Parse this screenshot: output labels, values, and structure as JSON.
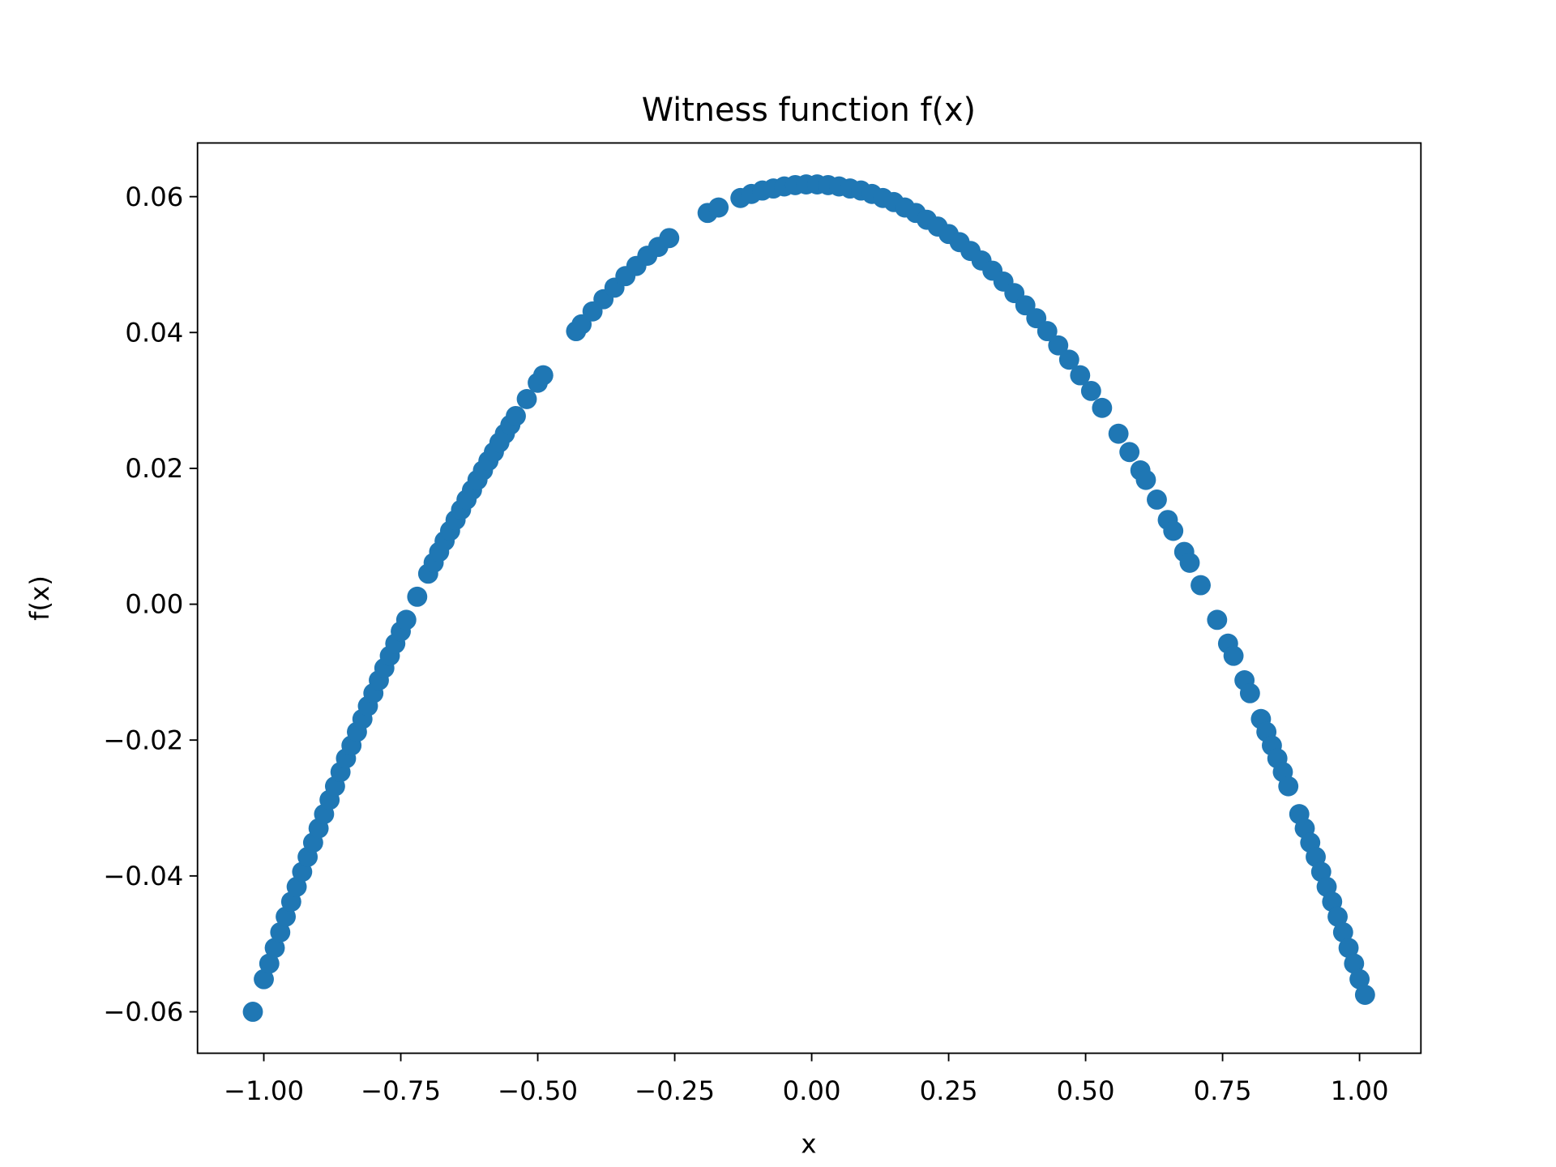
{
  "chart_data": {
    "type": "scatter",
    "title": "Witness function f(x)",
    "x_label": "x",
    "y_label": "f(x)",
    "series": [
      {
        "color": "#1f77b4",
        "x": [
          -1.02,
          -1.0,
          -0.99,
          -0.98,
          -0.97,
          -0.96,
          -0.95,
          -0.94,
          -0.93,
          -0.92,
          -0.91,
          -0.9,
          -0.89,
          -0.88,
          -0.87,
          -0.86,
          -0.85,
          -0.84,
          -0.83,
          -0.82,
          -0.81,
          -0.8,
          -0.79,
          -0.78,
          -0.77,
          -0.76,
          -0.75,
          -0.74,
          -0.72,
          -0.7,
          -0.69,
          -0.68,
          -0.67,
          -0.66,
          -0.65,
          -0.64,
          -0.63,
          -0.62,
          -0.61,
          -0.6,
          -0.59,
          -0.58,
          -0.57,
          -0.56,
          -0.55,
          -0.54,
          -0.52,
          -0.5,
          -0.49,
          -0.43,
          -0.42,
          -0.4,
          -0.38,
          -0.36,
          -0.34,
          -0.32,
          -0.3,
          -0.28,
          -0.26,
          -0.19,
          -0.17,
          -0.13,
          -0.11,
          -0.09,
          -0.07,
          -0.05,
          -0.03,
          -0.01,
          0.01,
          0.03,
          0.05,
          0.07,
          0.09,
          0.11,
          0.13,
          0.15,
          0.17,
          0.19,
          0.21,
          0.23,
          0.25,
          0.27,
          0.29,
          0.31,
          0.33,
          0.35,
          0.37,
          0.39,
          0.41,
          0.43,
          0.45,
          0.47,
          0.49,
          0.51,
          0.53,
          0.56,
          0.58,
          0.6,
          0.61,
          0.63,
          0.65,
          0.66,
          0.68,
          0.69,
          0.71,
          0.74,
          0.76,
          0.77,
          0.79,
          0.8,
          0.82,
          0.83,
          0.84,
          0.85,
          0.86,
          0.87,
          0.89,
          0.9,
          0.91,
          0.92,
          0.93,
          0.94,
          0.95,
          0.96,
          0.97,
          0.98,
          0.99,
          1.0,
          1.01
        ],
        "y": [
          -0.06,
          -0.0552,
          -0.0529,
          -0.0506,
          -0.0483,
          -0.046,
          -0.0438,
          -0.0416,
          -0.0394,
          -0.0372,
          -0.0351,
          -0.033,
          -0.0309,
          -0.0288,
          -0.0268,
          -0.0247,
          -0.0227,
          -0.0208,
          -0.0188,
          -0.0169,
          -0.015,
          -0.0131,
          -0.0112,
          -0.0094,
          -0.0076,
          -0.0058,
          -0.004,
          -0.0023,
          0.0011,
          0.0045,
          0.0061,
          0.0077,
          0.0093,
          0.0108,
          0.0124,
          0.0139,
          0.0154,
          0.0168,
          0.0183,
          0.0197,
          0.0211,
          0.0224,
          0.0238,
          0.0251,
          0.0264,
          0.0277,
          0.0302,
          0.0326,
          0.0337,
          0.0402,
          0.0412,
          0.0431,
          0.0449,
          0.0466,
          0.0483,
          0.0498,
          0.0513,
          0.0526,
          0.0539,
          0.0576,
          0.0584,
          0.0598,
          0.0604,
          0.0609,
          0.0612,
          0.0615,
          0.0617,
          0.0618,
          0.0618,
          0.0617,
          0.0615,
          0.0612,
          0.0609,
          0.0604,
          0.0598,
          0.0592,
          0.0584,
          0.0576,
          0.0566,
          0.0556,
          0.0545,
          0.0533,
          0.052,
          0.0506,
          0.0491,
          0.0475,
          0.0458,
          0.044,
          0.0421,
          0.0402,
          0.0381,
          0.036,
          0.0337,
          0.0314,
          0.0289,
          0.0251,
          0.0224,
          0.0197,
          0.0183,
          0.0154,
          0.0124,
          0.0108,
          0.0077,
          0.0061,
          0.0028,
          -0.0023,
          -0.0058,
          -0.0076,
          -0.0112,
          -0.0131,
          -0.0169,
          -0.0188,
          -0.0208,
          -0.0227,
          -0.0247,
          -0.0268,
          -0.0309,
          -0.033,
          -0.0351,
          -0.0372,
          -0.0394,
          -0.0416,
          -0.0438,
          -0.046,
          -0.0483,
          -0.0506,
          -0.0529,
          -0.0552,
          -0.0575
        ]
      }
    ],
    "xlim": [
      -1.121,
      1.112
    ],
    "ylim": [
      -0.0661,
      0.0679
    ],
    "xticks": [
      {
        "value": -1.0,
        "label": "−1.00"
      },
      {
        "value": -0.75,
        "label": "−0.75"
      },
      {
        "value": -0.5,
        "label": "−0.50"
      },
      {
        "value": -0.25,
        "label": "−0.25"
      },
      {
        "value": 0,
        "label": "0.00"
      },
      0.25,
      {
        "value": 0.5,
        "label": "0.50"
      },
      0.75,
      {
        "value": 1.0,
        "label": "1.00"
      }
    ],
    "yticks": [
      {
        "value": -0.06,
        "label": "−0.06"
      },
      {
        "value": -0.04,
        "label": "−0.04"
      },
      {
        "value": -0.02,
        "label": "−0.02"
      },
      {
        "value": 0,
        "label": "0.00"
      },
      0.02,
      0.04,
      0.06
    ]
  }
}
